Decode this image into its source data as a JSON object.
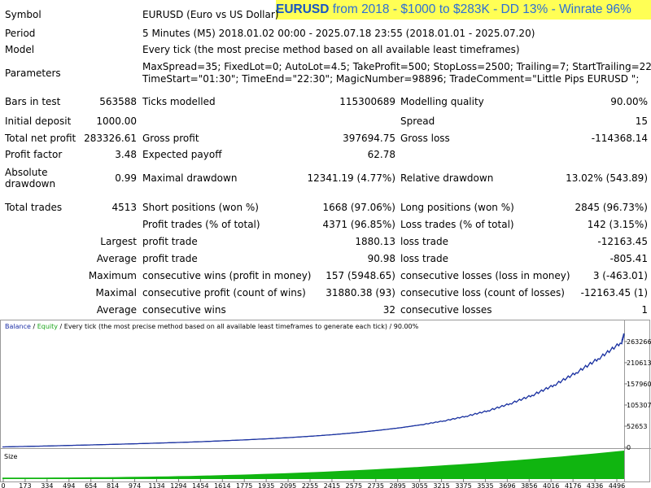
{
  "banner": {
    "symbol": "EURUSD",
    "text": " from 2018 - $1000 to $283K - DD 13% - Winrate 96%"
  },
  "report": {
    "symbol": {
      "label": "Symbol",
      "value": "EURUSD (Euro vs US Dollar)"
    },
    "period": {
      "label": "Period",
      "value": "5 Minutes (M5) 2018.01.02 00:00 - 2025.07.18 23:55 (2018.01.01 - 2025.07.20)"
    },
    "model": {
      "label": "Model",
      "value": "Every tick (the most precise method based on all available least timeframes)"
    },
    "parameters": {
      "label": "Parameters",
      "line1": "MaxSpread=35; FixedLot=0; AutoLot=4.5; TakeProfit=500; StopLoss=2500; Trailing=7; StartTrailing=22;",
      "line2": "TimeStart=\"01:30\"; TimeEnd=\"22:30\"; MagicNumber=98896; TradeComment=\"Little Pips EURUSD \";"
    },
    "bars_in_test": {
      "label": "Bars in test",
      "value": "563588"
    },
    "ticks_modelled": {
      "label": "Ticks modelled",
      "value": "115300689"
    },
    "modelling_quality": {
      "label": "Modelling quality",
      "value": "90.00%"
    },
    "initial_deposit": {
      "label": "Initial deposit",
      "value": "1000.00"
    },
    "spread": {
      "label": "Spread",
      "value": "15"
    },
    "total_net_profit": {
      "label": "Total net profit",
      "value": "283326.61"
    },
    "gross_profit": {
      "label": "Gross profit",
      "value": "397694.75"
    },
    "gross_loss": {
      "label": "Gross loss",
      "value": "-114368.14"
    },
    "profit_factor": {
      "label": "Profit factor",
      "value": "3.48"
    },
    "expected_payoff": {
      "label": "Expected payoff",
      "value": "62.78"
    },
    "absolute_drawdown": {
      "label_line1": "Absolute",
      "label_line2": "drawdown",
      "value": "0.99"
    },
    "maximal_drawdown": {
      "label": "Maximal drawdown",
      "value": "12341.19 (4.77%)"
    },
    "relative_drawdown": {
      "label": "Relative drawdown",
      "value": "13.02% (543.89)"
    },
    "total_trades": {
      "label": "Total trades",
      "value": "4513"
    },
    "short_positions": {
      "label": "Short positions (won %)",
      "value": "1668 (97.06%)"
    },
    "long_positions": {
      "label": "Long positions (won %)",
      "value": "2845 (96.73%)"
    },
    "profit_trades": {
      "label": "Profit trades (% of total)",
      "value": "4371 (96.85%)"
    },
    "loss_trades": {
      "label": "Loss trades (% of total)",
      "value": "142 (3.15%)"
    },
    "largest": {
      "prefix": "Largest",
      "profit_label": "profit trade",
      "profit_value": "1880.13",
      "loss_label": "loss trade",
      "loss_value": "-12163.45"
    },
    "average": {
      "prefix": "Average",
      "profit_label": "profit trade",
      "profit_value": "90.98",
      "loss_label": "loss trade",
      "loss_value": "-805.41"
    },
    "maximum": {
      "prefix": "Maximum",
      "profit_label": "consecutive wins (profit in money)",
      "profit_value": "157 (5948.65)",
      "loss_label": "consecutive losses (loss in money)",
      "loss_value": "3 (-463.01)"
    },
    "maximal": {
      "prefix": "Maximal",
      "profit_label": "consecutive profit (count of wins)",
      "profit_value": "31880.38 (93)",
      "loss_label": "consecutive loss (count of losses)",
      "loss_value": "-12163.45 (1)"
    },
    "average_consecutive": {
      "prefix": "Average",
      "profit_label": "consecutive wins",
      "profit_value": "32",
      "loss_label": "consecutive losses",
      "loss_value": "1"
    }
  },
  "graph": {
    "legend_balance": "Balance",
    "legend_sep": " / ",
    "legend_equity": "Equity",
    "caption_rest": " / Every tick (the most precise method based on all available least timeframes to generate each tick) / 90.00%",
    "size_label": "Size",
    "colors": {
      "balance": "#1c2fa6",
      "equity": "#1aa51a",
      "size_fill": "#10b510",
      "grid": "#c8c8c8"
    }
  },
  "chart_data": {
    "type": "line",
    "title": "",
    "series": [
      {
        "name": "Balance",
        "color": "#1c2fa6"
      },
      {
        "name": "Equity",
        "color": "#1aa51a"
      }
    ],
    "x": [
      0,
      173,
      334,
      494,
      654,
      814,
      974,
      1134,
      1294,
      1454,
      1614,
      1775,
      1935,
      2095,
      2255,
      2415,
      2575,
      2735,
      2895,
      3055,
      3215,
      3375,
      3535,
      3696,
      3856,
      4016,
      4176,
      4336,
      4496
    ],
    "balance": [
      1000,
      2300,
      3400,
      4800,
      6100,
      7500,
      9000,
      10600,
      12300,
      14200,
      16500,
      18800,
      21500,
      24500,
      28000,
      32000,
      36800,
      42500,
      49000,
      57000,
      66500,
      78000,
      92000,
      110000,
      131000,
      157000,
      188000,
      223000,
      262000
    ],
    "final_point": {
      "x": 4513,
      "y": 283326.61
    },
    "y_ticks": [
      0,
      52653,
      105307,
      157960,
      210613,
      263266
    ],
    "x_ticks": [
      0,
      173,
      334,
      494,
      654,
      814,
      974,
      1134,
      1294,
      1454,
      1614,
      1775,
      1935,
      2095,
      2255,
      2415,
      2575,
      2735,
      2895,
      3055,
      3215,
      3375,
      3535,
      3696,
      3856,
      4016,
      4176,
      4336,
      4496
    ],
    "ylim": [
      0,
      283326.61
    ],
    "xlim": [
      0,
      4513
    ],
    "grid": false,
    "size_panel": {
      "label": "Size",
      "relative_fill_start": 0.05,
      "relative_fill_end": 1.0
    }
  }
}
